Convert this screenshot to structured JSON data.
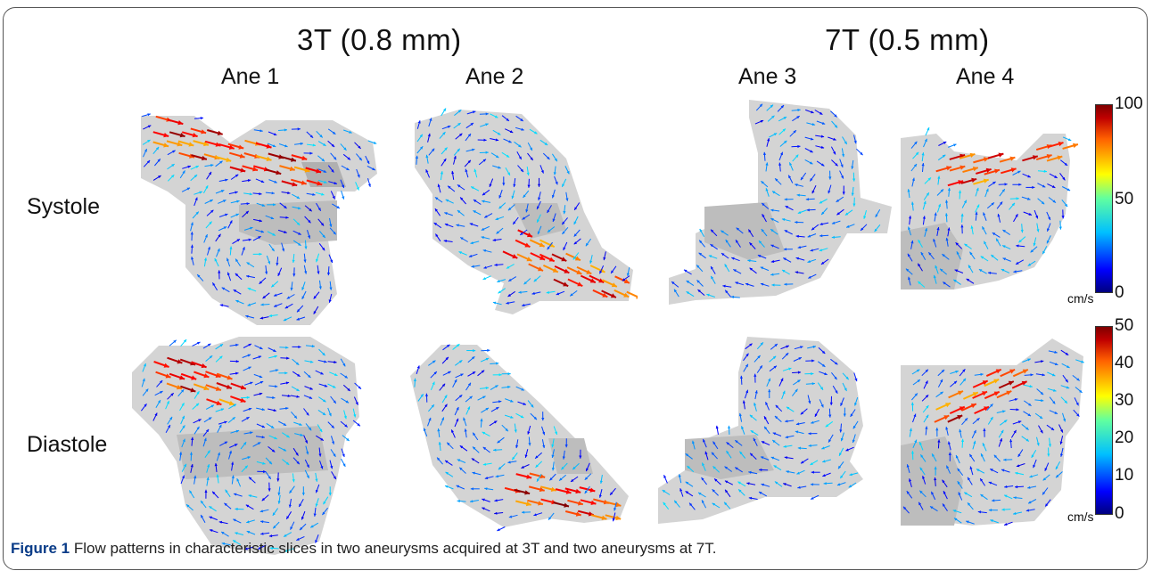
{
  "figure": {
    "field_3t": "3T (0.8 mm)",
    "field_7t": "7T (0.5 mm)",
    "aneurysms": [
      "Ane 1",
      "Ane 2",
      "Ane 3",
      "Ane 4"
    ],
    "phases": [
      "Systole",
      "Diastole"
    ],
    "colorbar_systole": {
      "max": "100",
      "mid": "50",
      "min": "0",
      "unit": "cm/s"
    },
    "colorbar_diastole": {
      "ticks": [
        "50",
        "40",
        "30",
        "20",
        "10",
        "0"
      ],
      "unit": "cm/s"
    },
    "caption_label": "Figure 1",
    "caption_text": " Flow patterns in characteristic slices in two aneurysms acquired at 3T and two aneurysms at 7T."
  }
}
